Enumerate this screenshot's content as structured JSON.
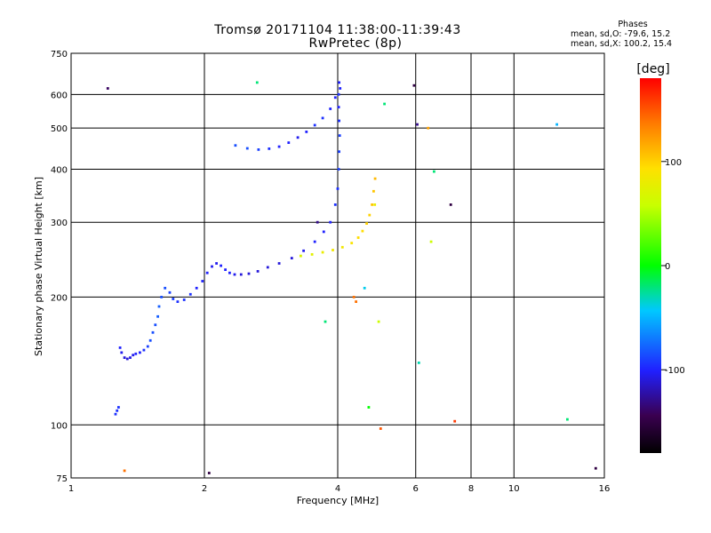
{
  "chart_data": {
    "type": "scatter",
    "title": "Tromsø 20171104 11:38:00-11:39:43",
    "subtitle": "RwPretec (8p)",
    "xlabel": "Frequency [MHz]",
    "ylabel": "Stationary phase Virtual Height [km]",
    "x_scale": "log",
    "y_scale": "log",
    "xlim": [
      1,
      16
    ],
    "ylim": [
      75,
      750
    ],
    "x_ticks": [
      1,
      2,
      4,
      6,
      8,
      10,
      16
    ],
    "x_tick_labels": [
      "1",
      "2",
      "4",
      "6",
      "8",
      "10",
      "16"
    ],
    "y_ticks": [
      75,
      100,
      200,
      300,
      400,
      500,
      600,
      750
    ],
    "y_tick_labels": [
      "75",
      "100",
      "200",
      "300",
      "400",
      "500",
      "600",
      "750"
    ],
    "grid": true,
    "stats": {
      "heading": "Phases",
      "line_o": "mean, sd,O: -79.6, 15.2",
      "line_x": "mean, sd,X: 100.2, 15.4"
    },
    "colorbar": {
      "label": "[deg]",
      "range": [
        -180,
        180
      ],
      "ticks": [
        100,
        0,
        -100
      ],
      "tick_labels": [
        "100",
        "0",
        "-100"
      ]
    },
    "series": [
      {
        "x": [
          1.26,
          1.27,
          1.28,
          1.29,
          1.3,
          1.32,
          1.34,
          1.36,
          1.38,
          1.4,
          1.43,
          1.46,
          1.49,
          1.51,
          1.53,
          1.55,
          1.57,
          1.58,
          1.6,
          1.63,
          1.67,
          1.7,
          1.74,
          1.8,
          1.86,
          1.92,
          1.98,
          2.03,
          2.08,
          2.13,
          2.18,
          2.23,
          2.28,
          2.34,
          2.42,
          2.52,
          2.64,
          2.78,
          2.95,
          3.15,
          3.35,
          3.55,
          3.72,
          3.85,
          3.95,
          4.0,
          4.02,
          4.03,
          4.04,
          4.03,
          4.02,
          4.02,
          4.03
        ],
        "y": [
          106,
          108,
          110,
          152,
          148,
          144,
          143,
          144,
          146,
          147,
          148,
          150,
          153,
          158,
          165,
          172,
          180,
          190,
          200,
          210,
          205,
          198,
          195,
          197,
          203,
          210,
          218,
          228,
          236,
          240,
          237,
          232,
          228,
          226,
          226,
          227,
          230,
          235,
          240,
          247,
          257,
          270,
          285,
          300,
          330,
          360,
          400,
          440,
          480,
          520,
          560,
          600,
          640
        ],
        "phase": [
          -95,
          -95,
          -95,
          -100,
          -105,
          -110,
          -110,
          -108,
          -105,
          -100,
          -100,
          -95,
          -90,
          -85,
          -85,
          -85,
          -80,
          -80,
          -85,
          -85,
          -90,
          -90,
          -95,
          -95,
          -95,
          -100,
          -100,
          -100,
          -105,
          -105,
          -100,
          -100,
          -100,
          -105,
          -110,
          -110,
          -110,
          -110,
          -110,
          -110,
          -105,
          -100,
          -100,
          -100,
          -95,
          -95,
          -90,
          -90,
          -90,
          -95,
          -100,
          -95,
          -100
        ]
      },
      {
        "x": [
          2.35,
          2.5,
          2.65,
          2.8,
          2.95,
          3.1,
          3.25,
          3.4,
          3.55,
          3.7,
          3.85,
          3.95,
          4.05
        ],
        "y": [
          455,
          448,
          445,
          447,
          452,
          462,
          475,
          490,
          508,
          528,
          555,
          590,
          620
        ],
        "phase": [
          -85,
          -85,
          -90,
          -95,
          -100,
          -100,
          -105,
          -100,
          -95,
          -95,
          -100,
          -100,
          -100
        ]
      },
      {
        "x": [
          3.3,
          3.5,
          3.7,
          3.9,
          4.1,
          4.3,
          4.45,
          4.55,
          4.65,
          4.72,
          4.78,
          4.82,
          4.86
        ],
        "y": [
          250,
          252,
          255,
          258,
          262,
          268,
          276,
          286,
          298,
          312,
          330,
          355,
          380
        ],
        "phase": [
          70,
          75,
          80,
          85,
          85,
          90,
          95,
          95,
          100,
          100,
          105,
          105,
          110
        ]
      },
      {
        "x": [
          1.21,
          1.32,
          2.05,
          2.63,
          4.4,
          4.7,
          4.85,
          4.95,
          5.0,
          5.1,
          5.95,
          6.05,
          6.1,
          6.4,
          6.5,
          6.6,
          7.2,
          7.35,
          12.5,
          13.2,
          15.3,
          3.6,
          3.75,
          4.35,
          4.6
        ],
        "y": [
          620,
          78,
          77,
          640,
          195,
          110,
          330,
          175,
          98,
          570,
          630,
          510,
          140,
          500,
          270,
          395,
          330,
          102,
          510,
          103,
          79,
          300,
          175,
          200,
          210
        ],
        "phase": [
          -140,
          140,
          -150,
          -20,
          140,
          0,
          80,
          60,
          150,
          -20,
          -150,
          -130,
          -30,
          120,
          60,
          -20,
          -150,
          160,
          -50,
          -20,
          -150,
          -130,
          -20,
          140,
          -40
        ]
      }
    ]
  }
}
